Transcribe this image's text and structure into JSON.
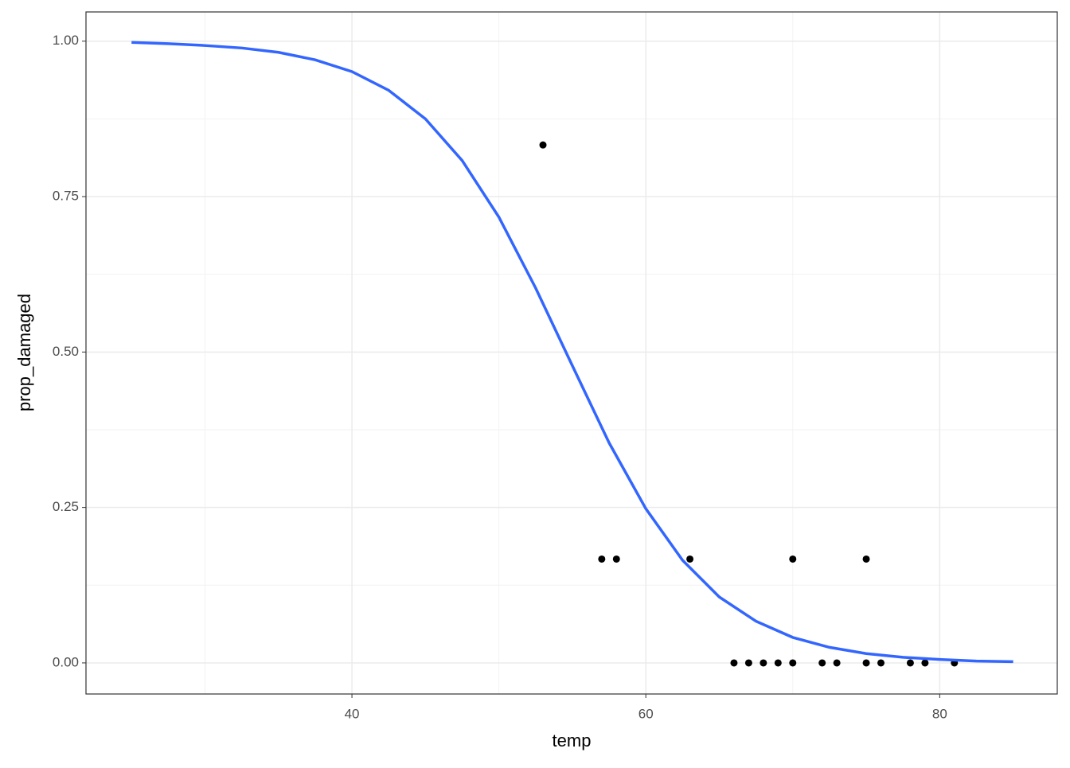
{
  "chart_data": {
    "type": "scatter",
    "x_label": "temp",
    "y_label": "prop_damaged",
    "xlim": [
      21.9,
      88.0
    ],
    "ylim": [
      -0.05,
      1.047
    ],
    "xticks": [
      40,
      60,
      80
    ],
    "yticks": [
      {
        "value": 0,
        "label": "0.00"
      },
      {
        "value": 0.25,
        "label": "0.25"
      },
      {
        "value": 0.5,
        "label": "0.50"
      },
      {
        "value": 0.75,
        "label": "0.75"
      },
      {
        "value": 1,
        "label": "1.00"
      }
    ],
    "xminor": [
      30,
      50,
      70
    ],
    "yminor": [
      0.125,
      0.375,
      0.625,
      0.875
    ],
    "grid": true,
    "points": {
      "color": "#000000",
      "x": [
        53,
        57,
        58,
        63,
        70,
        75,
        66,
        67,
        68,
        69,
        70,
        72,
        73,
        75,
        76,
        78,
        79,
        81
      ],
      "y": [
        0.833,
        0.167,
        0.167,
        0.167,
        0.167,
        0.167,
        0,
        0,
        0,
        0,
        0,
        0,
        0,
        0,
        0,
        0,
        0,
        0
      ]
    },
    "fit": {
      "color": "#3366FF",
      "x": [
        25,
        27.5,
        30,
        32.5,
        35,
        37.5,
        40,
        42.5,
        45,
        47.5,
        50,
        52.5,
        55,
        57.5,
        60,
        62.5,
        65,
        67.5,
        70,
        72.5,
        75,
        77.5,
        80,
        82.5,
        85
      ],
      "y": [
        0.998,
        0.996,
        0.993,
        0.989,
        0.982,
        0.97,
        0.951,
        0.921,
        0.875,
        0.808,
        0.717,
        0.603,
        0.478,
        0.354,
        0.248,
        0.165,
        0.106,
        0.067,
        0.041,
        0.025,
        0.015,
        0.009,
        0.0055,
        0.003,
        0.002
      ]
    }
  }
}
